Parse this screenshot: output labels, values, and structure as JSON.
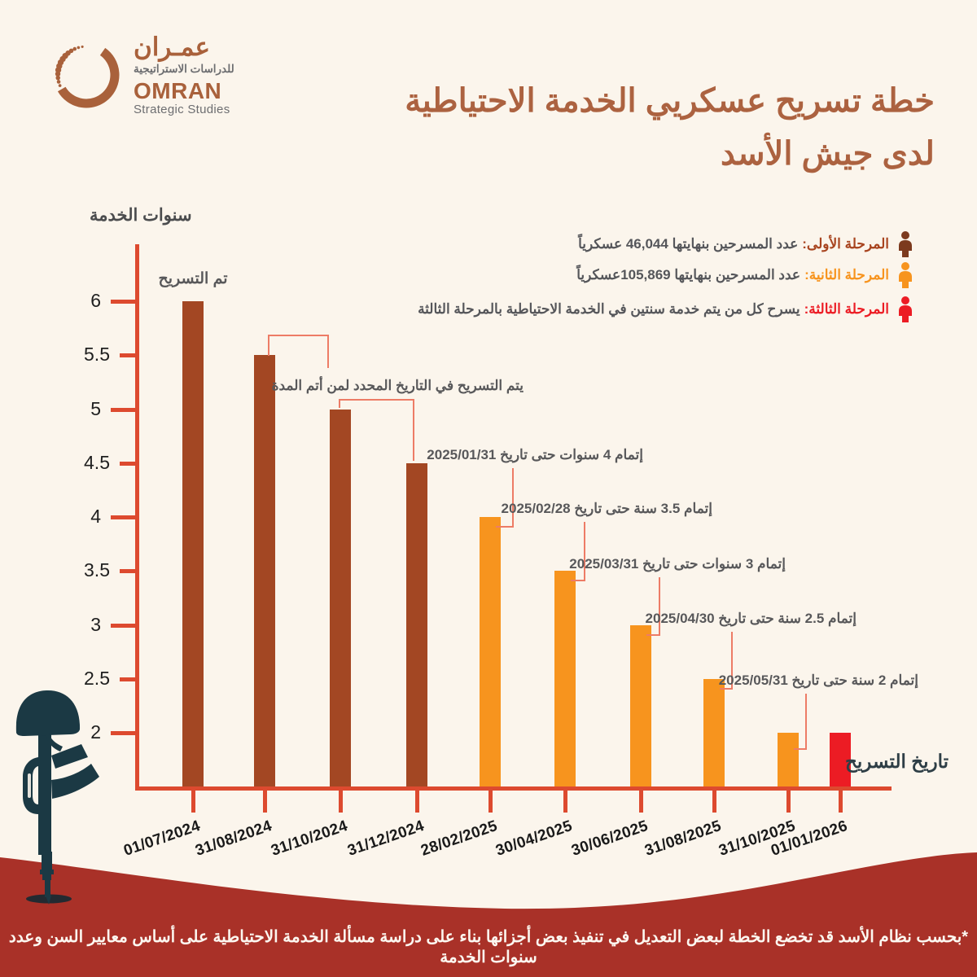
{
  "header": {
    "logo": {
      "arabic_name": "عمـران",
      "arabic_sub": "للدراسات الاستراتيجية",
      "latin_name": "OMRAN",
      "latin_sub": "Strategic Studies"
    },
    "title_line1": "خطة تسريح عسكريي الخدمة الاحتياطية",
    "title_line2": "لدى جيش الأسد"
  },
  "legend": [
    {
      "label": "المرحلة الأولى:",
      "text": "عدد المسرحين بنهايتها 46,044 عسكرياً",
      "color": "#A8441F",
      "icon_color": "#7C3A1E"
    },
    {
      "label": "المرحلة الثانية:",
      "text": "عدد المسرحين بنهايتها 105,869عسكرياً",
      "color": "#F7941E",
      "icon_color": "#F7941E"
    },
    {
      "label": "المرحلة الثالثة:",
      "text": "يسرح كل من يتم خدمة سنتين في الخدمة الاحتياطية بالمرحلة الثالثة",
      "color": "#EC1C24",
      "icon_color": "#EC1C24"
    }
  ],
  "chart_data": {
    "type": "bar",
    "title": "خطة تسريح عسكريي الخدمة الاحتياطية لدى جيش الأسد",
    "categories": [
      "01/07/2024",
      "31/08/2024",
      "31/10/2024",
      "31/12/2024",
      "28/02/2025",
      "30/04/2025",
      "30/06/2025",
      "31/08/2025",
      "31/10/2025",
      "01/01/2026"
    ],
    "values": [
      6,
      5.5,
      5,
      4.5,
      4,
      3.5,
      3,
      2.5,
      2,
      2
    ],
    "bar_colors": [
      "#A34723",
      "#A34723",
      "#A34723",
      "#A34723",
      "#F7941E",
      "#F7941E",
      "#F7941E",
      "#F7941E",
      "#F7941E",
      "#EC1C24"
    ],
    "ylabel": "سنوات الخدمة",
    "xlabel": "تاريخ التسريح",
    "yticks": [
      6,
      5.5,
      5,
      4.5,
      4,
      3.5,
      3,
      2.5,
      2
    ],
    "ylim": [
      1.5,
      6.5
    ],
    "grid": false,
    "legend_position": "top-right",
    "annotations": [
      {
        "text": "تم التسريح",
        "bar": 0
      },
      {
        "text": "يتم التسريح في التاريخ المحدد لمن أتم المدة",
        "bars": [
          1,
          2,
          3
        ]
      },
      {
        "text": "إتمام 4 سنوات حتى تاريخ 2025/01/31",
        "bar": 4
      },
      {
        "text": "إتمام 3.5 سنة حتى تاريخ 2025/02/28",
        "bar": 5
      },
      {
        "text": "إتمام 3 سنوات حتى تاريخ 2025/03/31",
        "bar": 6
      },
      {
        "text": "إتمام 2.5 سنة حتى تاريخ 2025/04/30",
        "bar": 7
      },
      {
        "text": "إتمام 2 سنة حتى تاريخ 2025/05/31",
        "bar": 8
      }
    ]
  },
  "footnote": "*بحسب نظام الأسد قد تخضع الخطة لبعض التعديل في تنفيذ بعض أجزائها بناء على دراسة مسألة الخدمة الاحتياطية على أساس معايير السن وعدد سنوات الخدمة",
  "colors": {
    "background": "#FBF5EC",
    "axis": "#DD4A2F",
    "callout": "#ED7C66",
    "phase1_bar": "#A34723",
    "phase2_bar": "#F7941E",
    "phase3_bar": "#EC1C24",
    "title": "#AC6240",
    "ground_band": "#A93128",
    "rifle_silhouette": "#1B3944"
  }
}
